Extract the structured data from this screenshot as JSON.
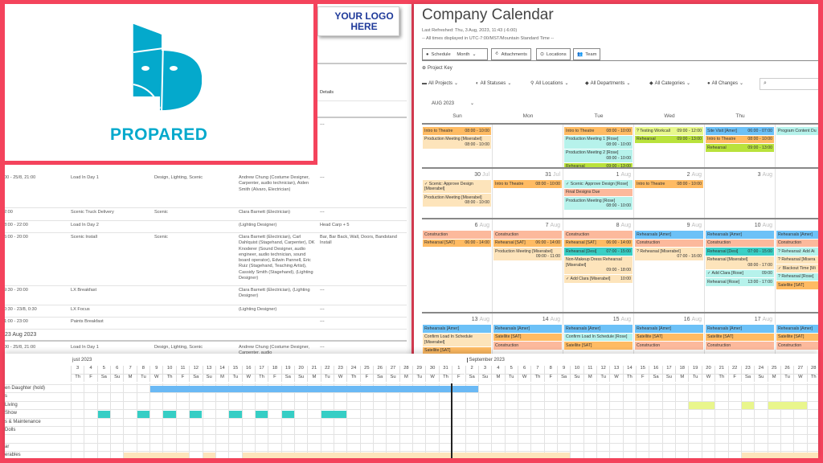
{
  "branding": {
    "logo_text": "PROPARED",
    "logo_color": "#04a9cc",
    "placeholder_logo": "YOUR LOGO HERE"
  },
  "document": {
    "details_header": "Details",
    "first_row_details": "---",
    "rows": [
      {
        "time": "00 - 25/8, 21:00",
        "name": "Load In Day 1",
        "departments": "Design, Lighting, Scenic",
        "people": "Andrew Chung (Costume Designer, Carpenter, audio technician), Aiden Smith (Alvaro, Electrician)",
        "details": "---"
      },
      {
        "time": "2:00",
        "name": "Scenic Truck Delivery",
        "departments": "Scenic",
        "people": "Clara Barnett (Electrician)",
        "details": "---"
      },
      {
        "time": "8:00 - 22:00",
        "name": "Load In Day 2",
        "departments": "",
        "people": "(Lighting Designer)",
        "details": "Head Carp + 5"
      },
      {
        "time": "5:00 - 20:00",
        "name": "Scenic Install",
        "departments": "Scenic",
        "people": "Clara Barnett (Electrician), Carl Dahlquist (Stagehand, Carpenter), DK Knoderer (Sound Designer, audio engineer, audio technician, sound board operator), Edwin Pannell, Eric Ruiz (Stagehand, Teaching Artist), Cassidy Smith (Stagehand), (Lighting Designer)",
        "details": "Bar, Bar Back, Wall, Doors, Bandstand Install"
      },
      {
        "time": "9:30 - 20:00",
        "name": "LX Breakfast",
        "departments": "",
        "people": "Clara Barnett (Electrician), (Lighting Designer)",
        "details": "---"
      },
      {
        "time": "0:30 - 23/8, 0:30",
        "name": "LX Focus",
        "departments": "",
        "people": "(Lighting Designer)",
        "details": "---"
      },
      {
        "time": "1:00 - 23:00",
        "name": "Paints Breakfast",
        "departments": "",
        "people": "",
        "details": "---"
      }
    ],
    "section_heading": "23 Aug 2023",
    "section_rows": [
      {
        "time": "00 - 25/8, 21:00",
        "name": "Load In Day 1",
        "departments": "Design, Lighting, Scenic",
        "people": "Andrew Chung (Costume Designer, Carpenter, audio",
        "details": "---"
      }
    ]
  },
  "calendar": {
    "title": "Company Calendar",
    "last_refreshed": "Last Refreshed: Thu, 3 Aug, 2023, 11:43 (-6:00)",
    "timezone_note": "-- All times displayed in UTC-7:00/MST/Mountain Standard Time --",
    "view_buttons": {
      "schedule": "Schedule",
      "month": "Month",
      "attachments": "Attachments",
      "locations": "Locations",
      "team": "Team"
    },
    "project_key": "Project Key",
    "filters": [
      "All Projects",
      "All Statuses",
      "All Locations",
      "All Departments",
      "All Categories",
      "All Changes"
    ],
    "month_select": "AUG 2023",
    "day_names": [
      "Sun",
      "Mon",
      "Tue",
      "Wed",
      "Thu"
    ],
    "colors": {
      "orange": "#ffbb63",
      "peach": "#fde4bb",
      "aqua": "#b6f2eb",
      "green": "#b9e23c",
      "lime": "#e7f88c",
      "blue": "#6cc1f7",
      "salmon": "#fcb99c",
      "teal": "#3acfc5"
    },
    "weeks": [
      {
        "days": [
          {
            "num": "",
            "mon": "",
            "events": [
              {
                "title": "Intro to Theatre",
                "time": "08:00 - 10:00",
                "color": "orange"
              },
              {
                "title": "Production Meeting [Miserabel]",
                "time": "08:00 - 10:00",
                "color": "peach",
                "block": true
              }
            ]
          },
          {
            "num": "",
            "mon": "",
            "events": []
          },
          {
            "num": "",
            "mon": "",
            "events": [
              {
                "title": "Intro to Theatre",
                "time": "08:00 - 10:00",
                "color": "orange"
              },
              {
                "title": "Production Meeting 1 [Rose]",
                "time": "08:00 - 10:00",
                "color": "aqua",
                "block": true
              },
              {
                "title": "Production Meeting 2 [Rose]",
                "time": "08:00 - 10:00",
                "color": "aqua",
                "block": true
              },
              {
                "title": "Rehearsal",
                "time": "09:00 - 13:00",
                "color": "green"
              }
            ]
          },
          {
            "num": "",
            "mon": "",
            "events": [
              {
                "title": "? Testing Workcall",
                "time": "09:00 - 12:00",
                "color": "lime"
              },
              {
                "title": "Rehearsal",
                "time": "09:00 - 13:00",
                "color": "green"
              }
            ]
          },
          {
            "num": "",
            "mon": "",
            "events": [
              {
                "title": "Site Visit [Amer]",
                "time": "06:00 - 07:00",
                "color": "blue"
              },
              {
                "title": "Intro to Theatre",
                "time": "08:00 - 10:00",
                "color": "orange"
              },
              {
                "title": "Rehearsal",
                "time": "09:00 - 13:00",
                "color": "green"
              }
            ]
          },
          {
            "num": "",
            "mon": "",
            "events": [
              {
                "title": "Program Content Du",
                "time": "",
                "color": "aqua"
              }
            ]
          }
        ]
      },
      {
        "days": [
          {
            "num": "30",
            "mon": "Jul",
            "events": [
              {
                "title": "✓ Scenic: Approve Design [Miserabel]",
                "time": "",
                "color": "peach"
              },
              {
                "title": "Production Meeting [Miserabel]",
                "time": "08:00 - 10:00",
                "color": "peach",
                "block": true
              }
            ]
          },
          {
            "num": "31",
            "mon": "Jul",
            "events": [
              {
                "title": "Intro to Theatre",
                "time": "08:00 - 10:00",
                "color": "orange"
              }
            ]
          },
          {
            "num": "1",
            "mon": "Aug",
            "events": [
              {
                "title": "✓ Scenic: Approve Design [Rose]",
                "time": "",
                "color": "aqua"
              },
              {
                "title": "Final Designs Due",
                "time": "",
                "color": "salmon"
              },
              {
                "title": "Production Meeting [Rose]",
                "time": "08:00 - 10:00",
                "color": "aqua",
                "block": true
              }
            ]
          },
          {
            "num": "2",
            "mon": "Aug",
            "events": [
              {
                "title": "Intro to Theatre",
                "time": "08:00 - 10:00",
                "color": "orange"
              }
            ]
          },
          {
            "num": "3",
            "mon": "Aug",
            "events": []
          },
          {
            "num": "",
            "mon": "",
            "events": []
          }
        ]
      },
      {
        "days": [
          {
            "num": "6",
            "mon": "Aug",
            "events": [
              {
                "title": "Construction",
                "time": "",
                "color": "salmon"
              },
              {
                "title": "Rehearsal [SAT]",
                "time": "06:00 - 14:00",
                "color": "orange"
              }
            ]
          },
          {
            "num": "7",
            "mon": "Aug",
            "events": [
              {
                "title": "Construction",
                "time": "",
                "color": "salmon"
              },
              {
                "title": "Rehearsal [SAT]",
                "time": "06:00 - 14:00",
                "color": "orange"
              },
              {
                "title": "Production Meeting [Miserabel]",
                "time": "09:00 - 11:00",
                "color": "peach",
                "block": true
              }
            ]
          },
          {
            "num": "8",
            "mon": "Aug",
            "events": [
              {
                "title": "Construction",
                "time": "",
                "color": "salmon"
              },
              {
                "title": "Rehearsal [SAT]",
                "time": "06:00 - 14:00",
                "color": "orange"
              },
              {
                "title": "Rehearsal [Desi]",
                "time": "07:00 - 15:00",
                "color": "teal"
              },
              {
                "title": "Non-Makeup Dress Rehearsal [Miserabel]",
                "time": "09:00 - 18:00",
                "color": "peach",
                "block": true
              },
              {
                "title": "✓ Add Clara [Miserabel]",
                "time": "10:00",
                "color": "peach"
              }
            ]
          },
          {
            "num": "9",
            "mon": "Aug",
            "events": [
              {
                "title": "Rehearsals [Amer]",
                "time": "",
                "color": "blue"
              },
              {
                "title": "Construction",
                "time": "",
                "color": "salmon"
              },
              {
                "title": "? Rehearsal [Miserabel]",
                "time": "07:00 - 16:00",
                "color": "peach",
                "block": true
              }
            ]
          },
          {
            "num": "10",
            "mon": "Aug",
            "events": [
              {
                "title": "Rehearsals [Amer]",
                "time": "",
                "color": "blue"
              },
              {
                "title": "Construction",
                "time": "",
                "color": "salmon"
              },
              {
                "title": "Rehearsal [Desi]",
                "time": "07:00 - 15:00",
                "color": "teal"
              },
              {
                "title": "Rehearsal [Miserabel]",
                "time": "08:00 - 17:00",
                "color": "peach",
                "block": true
              },
              {
                "title": "✓ Add Clara [Rose]",
                "time": "09:00",
                "color": "aqua"
              },
              {
                "title": "Rehearsal [Rose]",
                "time": "13:00 - 17:00",
                "color": "aqua"
              }
            ]
          },
          {
            "num": "",
            "mon": "",
            "events": [
              {
                "title": "Rehearsals [Amer]",
                "time": "",
                "color": "blue"
              },
              {
                "title": "Construction",
                "time": "",
                "color": "salmon"
              },
              {
                "title": "? Rehearsal: Add Ai",
                "time": "",
                "color": "aqua",
                "block": true
              },
              {
                "title": "? Rehearsal [Misera",
                "time": "",
                "color": "peach",
                "block": true
              },
              {
                "title": "✓ Blackout Time [Mi",
                "time": "",
                "color": "peach",
                "block": true
              },
              {
                "title": "? Rehearsal [Rose]",
                "time": "",
                "color": "aqua",
                "block": true
              },
              {
                "title": "Satellite [SAT]",
                "time": "",
                "color": "orange"
              }
            ]
          }
        ]
      },
      {
        "days": [
          {
            "num": "13",
            "mon": "Aug",
            "events": [
              {
                "title": "Rehearsals [Amer]",
                "time": "",
                "color": "blue"
              },
              {
                "title": "Confirm Load In Schedule [Miserabel]",
                "time": "",
                "color": "peach"
              },
              {
                "title": "Satellite [SAT]",
                "time": "",
                "color": "orange"
              }
            ]
          },
          {
            "num": "14",
            "mon": "Aug",
            "events": [
              {
                "title": "Rehearsals [Amer]",
                "time": "",
                "color": "blue"
              },
              {
                "title": "Satellite [SAT]",
                "time": "",
                "color": "orange"
              },
              {
                "title": "Construction",
                "time": "",
                "color": "salmon"
              }
            ]
          },
          {
            "num": "15",
            "mon": "Aug",
            "events": [
              {
                "title": "Rehearsals [Amer]",
                "time": "",
                "color": "blue"
              },
              {
                "title": "Confirm Load In Schedule [Rose]",
                "time": "",
                "color": "aqua"
              },
              {
                "title": "Satellite [SAT]",
                "time": "",
                "color": "orange"
              }
            ]
          },
          {
            "num": "16",
            "mon": "Aug",
            "events": [
              {
                "title": "Rehearsals [Amer]",
                "time": "",
                "color": "blue"
              },
              {
                "title": "Satellite [SAT]",
                "time": "",
                "color": "orange"
              },
              {
                "title": "Construction",
                "time": "",
                "color": "salmon"
              }
            ]
          },
          {
            "num": "17",
            "mon": "Aug",
            "events": [
              {
                "title": "Rehearsals [Amer]",
                "time": "",
                "color": "blue"
              },
              {
                "title": "Satellite [SAT]",
                "time": "",
                "color": "orange"
              },
              {
                "title": "Construction",
                "time": "",
                "color": "salmon"
              }
            ]
          },
          {
            "num": "",
            "mon": "",
            "events": [
              {
                "title": "Rehearsals [Amer]",
                "time": "",
                "color": "blue"
              },
              {
                "title": "Satellite [SAT]",
                "time": "",
                "color": "orange"
              },
              {
                "title": "Construction",
                "time": "",
                "color": "salmon"
              }
            ]
          }
        ]
      }
    ]
  },
  "gantt": {
    "months": [
      {
        "label": "just 2023",
        "start": "2023-08-03"
      },
      {
        "label": "September 2023",
        "start": "2023-09-02"
      }
    ],
    "start_date": "2023-08-03",
    "days": [
      "3",
      "4",
      "5",
      "6",
      "7",
      "8",
      "9",
      "10",
      "11",
      "12",
      "13",
      "14",
      "15",
      "16",
      "17",
      "18",
      "19",
      "20",
      "21",
      "22",
      "23",
      "24",
      "25",
      "26",
      "27",
      "28",
      "29",
      "30",
      "31",
      "1",
      "2",
      "3",
      "4",
      "5",
      "6",
      "7",
      "8",
      "9",
      "10",
      "11",
      "12",
      "13",
      "14",
      "15",
      "16",
      "17",
      "18",
      "19",
      "20",
      "21",
      "22",
      "23",
      "24",
      "25",
      "26",
      "27",
      "28"
    ],
    "weekdays": [
      "Th",
      "F",
      "Sa",
      "Su",
      "M",
      "Tu",
      "W",
      "Th",
      "F",
      "Sa",
      "Su",
      "M",
      "Tu",
      "W",
      "Th",
      "F",
      "Sa",
      "Su",
      "M",
      "Tu",
      "W",
      "Th",
      "F",
      "Sa",
      "Su",
      "M",
      "Tu",
      "W",
      "Th",
      "F",
      "Sa",
      "Su",
      "M",
      "Tu",
      "W",
      "Th",
      "F",
      "Sa",
      "Su",
      "M",
      "Tu",
      "W",
      "Th",
      "F",
      "Sa",
      "Su",
      "M",
      "Tu",
      "W",
      "Th",
      "F",
      "Sa",
      "Su",
      "M",
      "Tu",
      "W",
      "Th"
    ],
    "rows": [
      {
        "label": "en Daughter (hold)",
        "color": "#6ab9f5",
        "bars": [
          [
            "2023-08-09",
            "2023-09-02"
          ]
        ]
      },
      {
        "label": "s",
        "color": "",
        "bars": []
      },
      {
        "label": "Living",
        "color": "#e9f68c",
        "bars": [
          [
            "2023-09-19",
            "2023-09-20"
          ],
          [
            "2023-09-23",
            "2023-09-23"
          ],
          [
            "2023-09-25",
            "2023-09-27"
          ]
        ]
      },
      {
        "label": "Show",
        "color": "#36cec5",
        "bars": [
          [
            "2023-08-05",
            "2023-08-05"
          ],
          [
            "2023-08-08",
            "2023-08-08"
          ],
          [
            "2023-08-10",
            "2023-08-10"
          ],
          [
            "2023-08-12",
            "2023-08-12"
          ],
          [
            "2023-08-15",
            "2023-08-15"
          ],
          [
            "2023-08-17",
            "2023-08-17"
          ],
          [
            "2023-08-19",
            "2023-08-19"
          ],
          [
            "2023-08-22",
            "2023-08-23"
          ]
        ]
      },
      {
        "label": "s & Maintenance",
        "color": "",
        "bars": []
      },
      {
        "label": "Dolls",
        "color": "",
        "bars": []
      },
      {
        "label": "",
        "color": "",
        "bars": []
      },
      {
        "label": "ar",
        "color": "",
        "bars": []
      },
      {
        "label": "erables",
        "color": "#fde4bb",
        "bars": [
          [
            "2023-08-07",
            "2023-08-11"
          ],
          [
            "2023-08-13",
            "2023-08-13"
          ],
          [
            "2023-08-16",
            "2023-09-09"
          ],
          [
            "2023-09-23",
            "2023-09-28"
          ]
        ]
      }
    ]
  }
}
